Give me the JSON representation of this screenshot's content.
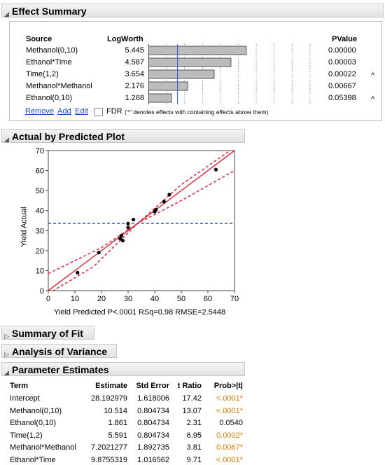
{
  "effect_summary": {
    "title": "Effect Summary",
    "col_source": "Source",
    "col_logworth": "LogWorth",
    "col_pvalue": "PValue",
    "rows": [
      {
        "source": "Methanol(0,10)",
        "logworth": "5.445",
        "lw": 5.445,
        "pvalue": "0.00000",
        "mark": ""
      },
      {
        "source": "Ethanol*Time",
        "logworth": "4.587",
        "lw": 4.587,
        "pvalue": "0.00003",
        "mark": ""
      },
      {
        "source": "Time(1,2)",
        "logworth": "3.654",
        "lw": 3.654,
        "pvalue": "0.00022",
        "mark": "^"
      },
      {
        "source": "Methanol*Methanol",
        "logworth": "2.176",
        "lw": 2.176,
        "pvalue": "0.00667",
        "mark": ""
      },
      {
        "source": "Ethanol(0,10)",
        "logworth": "1.268",
        "lw": 1.268,
        "pvalue": "0.05398",
        "mark": "^"
      }
    ],
    "remove": "Remove",
    "add": "Add",
    "edit": "Edit",
    "fdr": "FDR",
    "note": "('^' denotes effects with containing effects above them)"
  },
  "avp": {
    "title": "Actual by Predicted Plot",
    "xlabel": "Yield Predicted P<.0001 RSq=0.98 RMSE=2.5448",
    "ylabel": "Yield Actual"
  },
  "chart_data": {
    "type": "scatter",
    "title": "",
    "xlabel": "Yield Predicted P<.0001 RSq=0.98 RMSE=2.5448",
    "ylabel": "Yield Actual",
    "xlim": [
      0,
      70
    ],
    "ylim": [
      0,
      70
    ],
    "xticks": [
      0,
      10,
      20,
      30,
      40,
      50,
      60,
      70
    ],
    "yticks": [
      0,
      10,
      20,
      30,
      40,
      50,
      60,
      70
    ],
    "points": [
      [
        11,
        9
      ],
      [
        19,
        19
      ],
      [
        27,
        26
      ],
      [
        27.5,
        27.5
      ],
      [
        28,
        25
      ],
      [
        30,
        31.5
      ],
      [
        30,
        33.5
      ],
      [
        32,
        35.5
      ],
      [
        40,
        39.5
      ],
      [
        40.5,
        40.5
      ],
      [
        43.5,
        44.5
      ],
      [
        45.5,
        48
      ],
      [
        63,
        60.5
      ]
    ],
    "mean_line": 33.6,
    "fit_line": [
      [
        0,
        0
      ],
      [
        70,
        70
      ]
    ],
    "ci_upper": [
      [
        0,
        8.5
      ],
      [
        20,
        21.5
      ],
      [
        33.6,
        33.6
      ],
      [
        50,
        53
      ],
      [
        70,
        71.5
      ]
    ],
    "ci_lower": [
      [
        0,
        -1.5
      ],
      [
        17,
        12
      ],
      [
        33.6,
        33.6
      ],
      [
        50,
        45
      ],
      [
        70,
        60
      ]
    ],
    "colors": {
      "fit": "#e03040",
      "ci": "#d8283c",
      "mean": "#3050e0",
      "points": "#000000"
    }
  },
  "summary_of_fit": {
    "title": "Summary of Fit"
  },
  "anova": {
    "title": "Analysis of Variance"
  },
  "parameter_estimates": {
    "title": "Parameter Estimates",
    "headers": [
      "Term",
      "Estimate",
      "Std Error",
      "t Ratio",
      "Prob>|t|"
    ],
    "rows": [
      {
        "term": "Intercept",
        "estimate": "28.192979",
        "stderr": "1.618006",
        "tratio": "17.42",
        "prob": "<.0001*",
        "sig": true
      },
      {
        "term": "Methanol(0,10)",
        "estimate": "10.514",
        "stderr": "0.804734",
        "tratio": "13.07",
        "prob": "<.0001*",
        "sig": true
      },
      {
        "term": "Ethanol(0,10)",
        "estimate": "1.861",
        "stderr": "0.804734",
        "tratio": "2.31",
        "prob": "0.0540",
        "sig": false
      },
      {
        "term": "Time(1,2)",
        "estimate": "5.591",
        "stderr": "0.804734",
        "tratio": "6.95",
        "prob": "0.0002*",
        "sig": true
      },
      {
        "term": "Methanol*Methanol",
        "estimate": "7.2021277",
        "stderr": "1.892735",
        "tratio": "3.81",
        "prob": "0.0067*",
        "sig": true
      },
      {
        "term": "Ethanol*Time",
        "estimate": "9.8755319",
        "stderr": "1.016562",
        "tratio": "9.71",
        "prob": "<.0001*",
        "sig": true
      }
    ]
  }
}
